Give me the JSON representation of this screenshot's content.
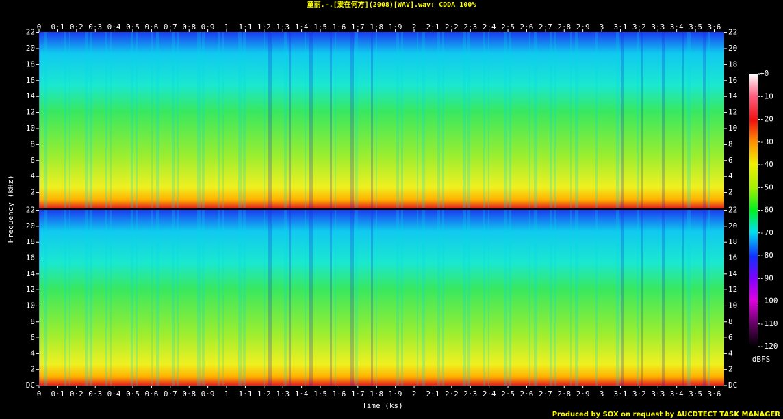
{
  "chart_data": {
    "type": "spectrogram",
    "title": "童丽.-.[爱在何方](2008)[WAV].wav: CDDA 100%",
    "xlabel": "Time (ks)",
    "ylabel": "Frequency (kHz)",
    "footer": "Produced by SOX on request by AUCDTECT TASK MANAGER",
    "xlim": [
      0,
      3.653
    ],
    "xticks": [
      0,
      {
        "value": 0.1,
        "label": "0·1"
      },
      {
        "value": 0.2,
        "label": "0·2"
      },
      {
        "value": 0.3,
        "label": "0·3"
      },
      {
        "value": 0.4,
        "label": "0·4"
      },
      {
        "value": 0.5,
        "label": "0·5"
      },
      {
        "value": 0.6,
        "label": "0·6"
      },
      {
        "value": 0.7,
        "label": "0·7"
      },
      {
        "value": 0.8,
        "label": "0·8"
      },
      {
        "value": 0.9,
        "label": "0·9"
      },
      1,
      {
        "value": 1.1,
        "label": "1·1"
      },
      {
        "value": 1.2,
        "label": "1·2"
      },
      {
        "value": 1.3,
        "label": "1·3"
      },
      {
        "value": 1.4,
        "label": "1·4"
      },
      {
        "value": 1.5,
        "label": "1·5"
      },
      {
        "value": 1.6,
        "label": "1·6"
      },
      {
        "value": 1.7,
        "label": "1·7"
      },
      {
        "value": 1.8,
        "label": "1·8"
      },
      {
        "value": 1.9,
        "label": "1·9"
      },
      2,
      {
        "value": 2.1,
        "label": "2·1"
      },
      {
        "value": 2.2,
        "label": "2·2"
      },
      {
        "value": 2.3,
        "label": "2·3"
      },
      {
        "value": 2.4,
        "label": "2·4"
      },
      {
        "value": 2.5,
        "label": "2·5"
      },
      {
        "value": 2.6,
        "label": "2·6"
      },
      {
        "value": 2.7,
        "label": "2·7"
      },
      {
        "value": 2.8,
        "label": "2·8"
      },
      {
        "value": 2.9,
        "label": "2·9"
      },
      3,
      {
        "value": 3.1,
        "label": "3·1"
      },
      {
        "value": 3.2,
        "label": "3·2"
      },
      {
        "value": 3.3,
        "label": "3·3"
      },
      {
        "value": 3.4,
        "label": "3·4"
      },
      {
        "value": 3.5,
        "label": "3·5"
      },
      {
        "value": 3.6,
        "label": "3·6"
      }
    ],
    "channels": [
      {
        "ylim": [
          0,
          22.05
        ],
        "yticks": [
          2,
          4,
          6,
          8,
          10,
          12,
          14,
          16,
          18,
          20,
          22
        ]
      },
      {
        "ylim": [
          0,
          22.05
        ],
        "yticks": [
          {
            "value": 0,
            "label": "DC"
          },
          2,
          4,
          6,
          8,
          10,
          12,
          14,
          16,
          18,
          20,
          22
        ]
      }
    ],
    "colorbar": {
      "label": "dBFS",
      "lim": [
        -120,
        0
      ],
      "ticks": [
        {
          "value": 0,
          "label": "+0"
        },
        -10,
        -20,
        -30,
        -40,
        -50,
        -60,
        -70,
        -80,
        -90,
        -100,
        -110,
        -120
      ]
    }
  }
}
